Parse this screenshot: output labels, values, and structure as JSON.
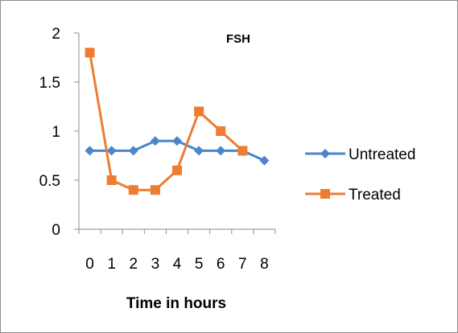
{
  "chart_data": {
    "type": "line",
    "title": "FSH",
    "xlabel": "Time in hours",
    "ylabel": "",
    "categories": [
      "0",
      "1",
      "2",
      "3",
      "4",
      "5",
      "6",
      "7",
      "8"
    ],
    "ylim": [
      0,
      2
    ],
    "yticks": [
      0,
      0.5,
      1,
      1.5,
      2
    ],
    "ytick_labels": [
      "0",
      "0.5",
      "1",
      "1.5",
      "2"
    ],
    "grid": false,
    "legend_position": "right",
    "series": [
      {
        "name": "Untreated",
        "color": "#4a86c8",
        "marker": "diamond",
        "values": [
          0.8,
          0.8,
          0.8,
          0.9,
          0.9,
          0.8,
          0.8,
          0.8,
          0.7
        ]
      },
      {
        "name": "Treated",
        "color": "#ed7d31",
        "marker": "square",
        "values": [
          1.8,
          0.5,
          0.4,
          0.4,
          0.6,
          1.2,
          1.0,
          0.8,
          null
        ]
      }
    ]
  }
}
